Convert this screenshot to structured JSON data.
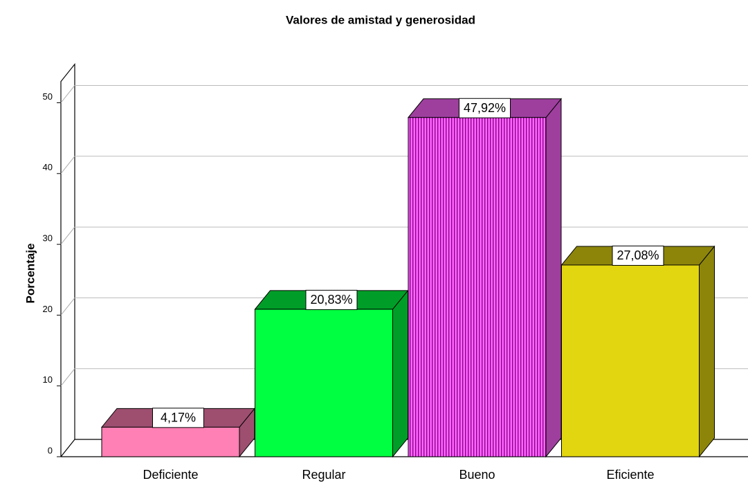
{
  "chart_data": {
    "type": "bar3d",
    "title": "Valores de amistad y generosidad",
    "y_label": "Porcentaje",
    "categories": [
      "Deficiente",
      "Regular",
      "Bueno",
      "Eficiente"
    ],
    "values": [
      4.17,
      20.83,
      47.92,
      27.08
    ],
    "value_labels": [
      "4,17%",
      "20,83%",
      "47,92%",
      "27,08%"
    ],
    "colors": [
      "#ff80b4",
      "#00ff40",
      "#ff66ff",
      "#e2d610"
    ],
    "ylim": [
      0,
      53
    ],
    "yticks": [
      0,
      10,
      20,
      30,
      40,
      50
    ],
    "grid": true
  }
}
